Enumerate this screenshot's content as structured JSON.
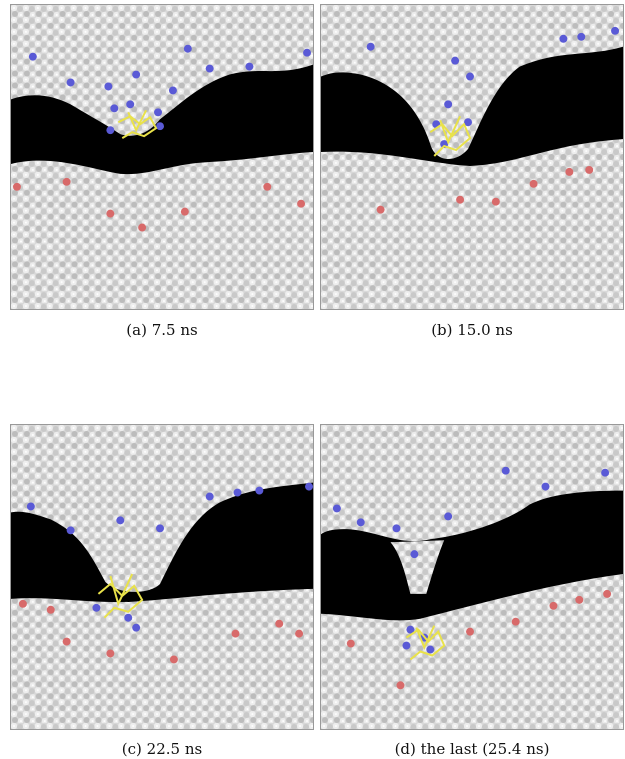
{
  "figure": {
    "panels": [
      {
        "id": "a",
        "caption": "(a) 7.5 ns"
      },
      {
        "id": "b",
        "caption": "(b) 15.0 ns"
      },
      {
        "id": "c",
        "caption": "(c) 22.5 ns"
      },
      {
        "id": "d",
        "caption": "(d) the last (25.4 ns)"
      }
    ]
  },
  "colors": {
    "background": "#000000",
    "lipid_bead": "#e6e6e6",
    "lipid_bead_shade": "#9a9a9a",
    "blue_bead": "#5a5ad6",
    "red_bead": "#d86a6a",
    "peptide": "#e9e24a"
  }
}
